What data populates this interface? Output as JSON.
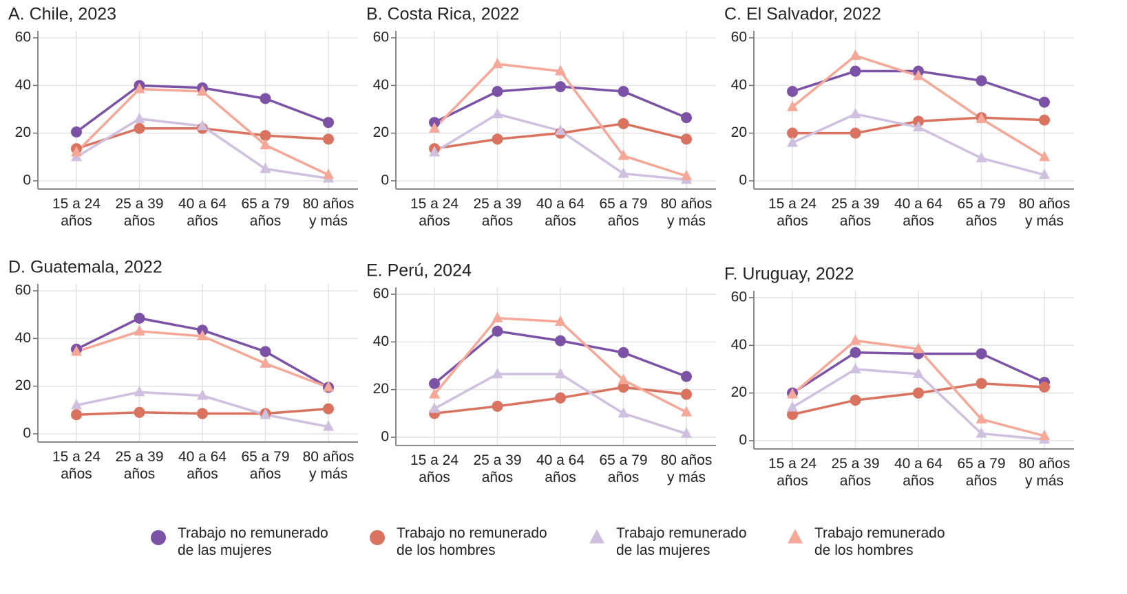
{
  "legend": [
    {
      "name": "Trabajo no remunerado\nde las mujeres",
      "color": "#7b52a6",
      "marker": "circle"
    },
    {
      "name": "Trabajo no remunerado\nde los hombres",
      "color": "#d9725f",
      "marker": "circle"
    },
    {
      "name": "Trabajo remunerado\nde las mujeres",
      "color": "#cfc0e0",
      "marker": "triangle"
    },
    {
      "name": "Trabajo remunerado\nde los hombres",
      "color": "#f5a898",
      "marker": "triangle"
    }
  ],
  "chart_data": [
    {
      "type": "line",
      "title": "A. Chile, 2023",
      "categories": [
        "15 a 24\naños",
        "25 a 39\naños",
        "40 a 64\naños",
        "65 a 79\naños",
        "80 años\ny más"
      ],
      "ylim": [
        0,
        60
      ],
      "yticks": [
        0,
        20,
        40,
        60
      ],
      "grid": true,
      "series": [
        {
          "values": [
            20.5,
            40,
            39,
            34.5,
            24.5
          ]
        },
        {
          "values": [
            13.5,
            22,
            22,
            19,
            17.5
          ]
        },
        {
          "values": [
            10,
            26,
            23,
            5,
            1
          ]
        },
        {
          "values": [
            12,
            38.5,
            37.5,
            15,
            2.5
          ]
        }
      ]
    },
    {
      "type": "line",
      "title": "B. Costa Rica, 2022",
      "categories": [
        "15 a 24\naños",
        "25 a 39\naños",
        "40 a 64\naños",
        "65 a 79\naños",
        "80 años\ny más"
      ],
      "ylim": [
        0,
        60
      ],
      "yticks": [
        0,
        20,
        40,
        60
      ],
      "grid": true,
      "series": [
        {
          "values": [
            24.5,
            37.5,
            39.5,
            37.5,
            26.5
          ]
        },
        {
          "values": [
            13.5,
            17.5,
            20,
            24,
            17.5
          ]
        },
        {
          "values": [
            12,
            28,
            21,
            3,
            0.5
          ]
        },
        {
          "values": [
            22,
            49,
            46,
            10.5,
            2
          ]
        }
      ]
    },
    {
      "type": "line",
      "title": "C. El Salvador, 2022",
      "categories": [
        "15 a 24\naños",
        "25 a 39\naños",
        "40 a 64\naños",
        "65 a 79\naños",
        "80 años\ny más"
      ],
      "ylim": [
        0,
        60
      ],
      "yticks": [
        0,
        20,
        40,
        60
      ],
      "grid": true,
      "series": [
        {
          "values": [
            37.5,
            46,
            46,
            42,
            33
          ]
        },
        {
          "values": [
            20,
            20,
            25,
            26.5,
            25.5
          ]
        },
        {
          "values": [
            16,
            28,
            22.5,
            9.5,
            2.5
          ]
        },
        {
          "values": [
            31,
            52.5,
            44,
            26,
            10
          ]
        }
      ]
    },
    {
      "type": "line",
      "title": "D. Guatemala, 2022",
      "categories": [
        "15 a 24\naños",
        "25 a 39\naños",
        "40 a 64\naños",
        "65 a 79\naños",
        "80 años\ny más"
      ],
      "ylim": [
        0,
        60
      ],
      "yticks": [
        0,
        20,
        40,
        60
      ],
      "grid": true,
      "series": [
        {
          "values": [
            35.5,
            48.5,
            43.5,
            34.5,
            19.5
          ]
        },
        {
          "values": [
            8,
            9,
            8.5,
            8.5,
            10.5
          ]
        },
        {
          "values": [
            12,
            17.5,
            16,
            8,
            3
          ]
        },
        {
          "values": [
            34.5,
            43,
            41,
            29.5,
            19.5
          ]
        }
      ]
    },
    {
      "type": "line",
      "title": "E. Perú, 2024",
      "categories": [
        "15 a 24\naños",
        "25 a 39\naños",
        "40 a 64\naños",
        "65 a 79\naños",
        "80 años\ny más"
      ],
      "ylim": [
        0,
        60
      ],
      "yticks": [
        0,
        20,
        40,
        60
      ],
      "grid": true,
      "series": [
        {
          "values": [
            22.5,
            44.5,
            40.5,
            35.5,
            25.5
          ]
        },
        {
          "values": [
            10,
            13,
            16.5,
            21,
            18
          ]
        },
        {
          "values": [
            12,
            26.5,
            26.5,
            10,
            1.5
          ]
        },
        {
          "values": [
            18,
            50,
            48.5,
            24,
            10.5
          ]
        }
      ]
    },
    {
      "type": "line",
      "title": "F. Uruguay, 2022",
      "categories": [
        "15 a 24\naños",
        "25 a 39\naños",
        "40 a 64\naños",
        "65 a 79\naños",
        "80 años\ny más"
      ],
      "ylim": [
        0,
        60
      ],
      "yticks": [
        0,
        20,
        40,
        60
      ],
      "grid": true,
      "series": [
        {
          "values": [
            20,
            37,
            36.5,
            36.5,
            24.5
          ]
        },
        {
          "values": [
            11,
            17,
            20,
            24,
            22.5
          ]
        },
        {
          "values": [
            14,
            30,
            28,
            3,
            0.5
          ]
        },
        {
          "values": [
            19.5,
            42,
            38.5,
            9,
            2
          ]
        }
      ]
    }
  ]
}
